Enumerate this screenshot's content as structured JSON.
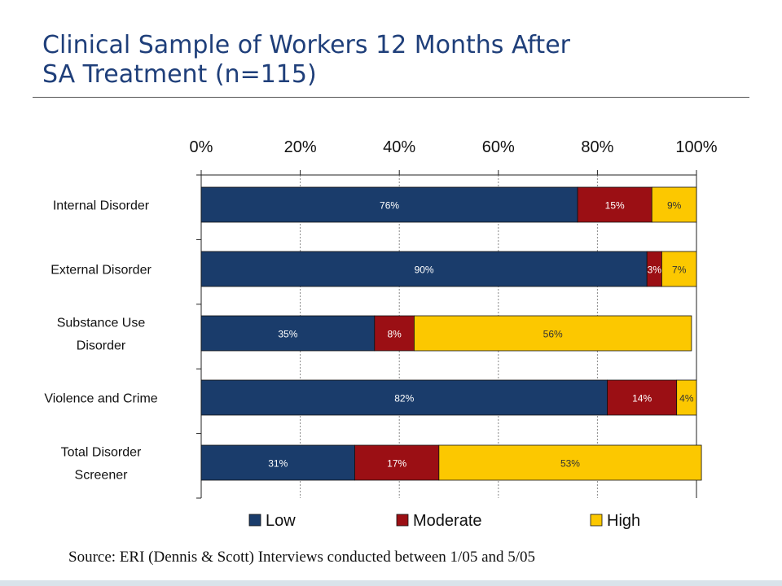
{
  "slide": {
    "title_line1": "Clinical Sample of Workers 12 Months After",
    "title_line2": "SA Treatment (n=115)",
    "source": "Source:  ERI (Dennis & Scott) Interviews conducted between 1/05 and 5/05"
  },
  "chart_data": {
    "type": "bar",
    "orientation": "horizontal",
    "stacked": true,
    "title": "",
    "xlabel": "",
    "ylabel": "",
    "xlim": [
      0,
      100
    ],
    "x_ticks": [
      "0%",
      "20%",
      "40%",
      "60%",
      "80%",
      "100%"
    ],
    "grid": true,
    "legend_position": "bottom",
    "categories": [
      [
        "Internal Disorder"
      ],
      [
        "External Disorder"
      ],
      [
        "Substance Use",
        "Disorder"
      ],
      [
        "Violence and Crime"
      ],
      [
        "Total Disorder",
        "Screener"
      ]
    ],
    "series": [
      {
        "name": "Low",
        "color": "#1a3c6b",
        "label_color": "#ffffff",
        "values": [
          76,
          90,
          35,
          82,
          31
        ],
        "labels": [
          "76%",
          "90%",
          "35%",
          "82%",
          "31%"
        ]
      },
      {
        "name": "Moderate",
        "color": "#9b0f14",
        "label_color": "#ffffff",
        "values": [
          15,
          3,
          8,
          14,
          17
        ],
        "labels": [
          "15%",
          "3%",
          "8%",
          "14%",
          "17%"
        ]
      },
      {
        "name": "High",
        "color": "#fcc800",
        "label_color": "#333333",
        "values": [
          9,
          7,
          56,
          4,
          53
        ],
        "labels": [
          "9%",
          "7%",
          "56%",
          "4%",
          "53%"
        ]
      }
    ]
  }
}
